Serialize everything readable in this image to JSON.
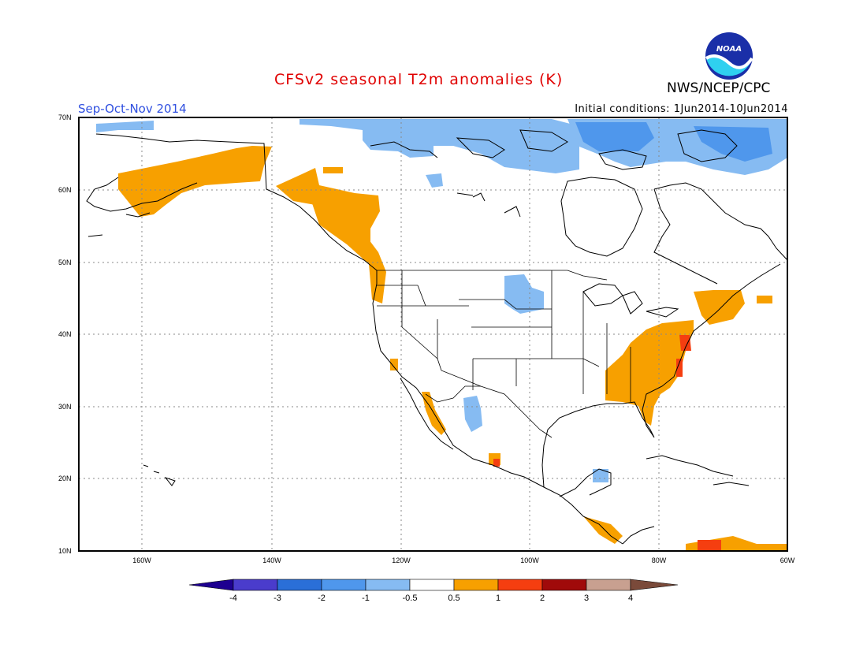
{
  "title": "CFSv2 seasonal T2m anomalies (K)",
  "organization": "NWS/NCEP/CPC",
  "logo_text": "NOAA",
  "season": "Sep-Oct-Nov 2014",
  "initial_conditions": "Initial conditions: 1Jun2014-10Jun2014",
  "latitude_labels": [
    "70N",
    "60N",
    "50N",
    "40N",
    "30N",
    "20N",
    "10N"
  ],
  "longitude_labels": [
    "160W",
    "140W",
    "120W",
    "100W",
    "80W",
    "60W"
  ],
  "colorbar": {
    "tick_labels": [
      "-4",
      "-3",
      "-2",
      "-1",
      "-0.5",
      "0.5",
      "1",
      "2",
      "3",
      "4"
    ],
    "colors": [
      "#1e0090",
      "#4a3ccc",
      "#2a6fd8",
      "#4f97ec",
      "#86bbf2",
      "#ffffff",
      "#f7a000",
      "#f53e10",
      "#a00a0a",
      "#c8a090",
      "#7a4a3a"
    ]
  },
  "legend_colors": {
    "neg_weak": "#86bbf2",
    "neg_mid": "#4f97ec",
    "pos_weak": "#f7a000",
    "pos_mid": "#f53e10"
  }
}
